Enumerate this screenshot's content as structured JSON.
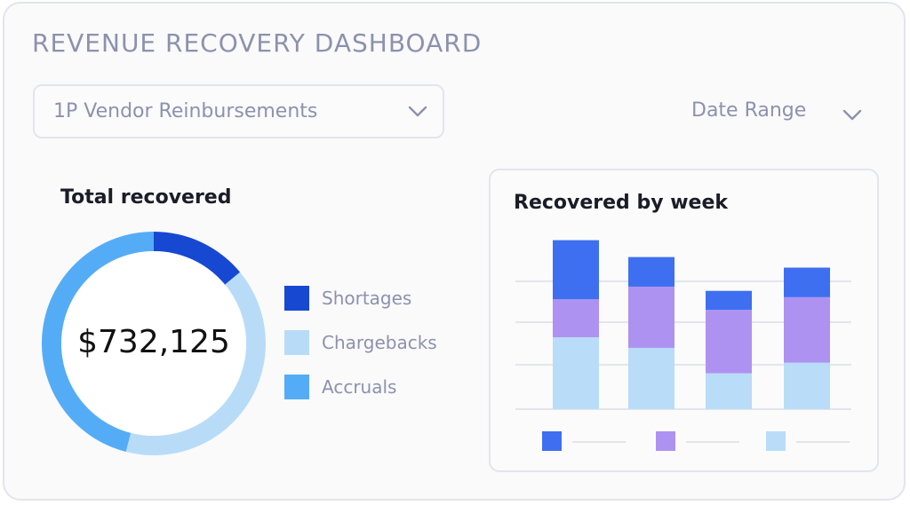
{
  "dashboard": {
    "title": "REVENUE RECOVERY DASHBOARD",
    "vendor_select": {
      "selected": "1P Vendor Reinbursements",
      "icon": "chevron-down-icon"
    },
    "date_range": {
      "label": "Date Range",
      "icon": "chevron-down-icon"
    }
  },
  "total_recovered": {
    "title": "Total recovered",
    "value": "$732,125",
    "legend": [
      {
        "label": "Shortages",
        "color": "#1648d2"
      },
      {
        "label": "Chargebacks",
        "color": "#b8dcf8"
      },
      {
        "label": "Accruals",
        "color": "#55acf6"
      }
    ]
  },
  "colors": {
    "shortages": "#1648d2",
    "chargebacks": "#b8dcf8",
    "accruals": "#55acf6",
    "bar_blue": "#3e6ff0",
    "bar_purple": "#ae92f2",
    "bar_light": "#b9ddf8",
    "grid": "#e3e5ec"
  },
  "chart_data": [
    {
      "type": "pie",
      "title": "Total recovered",
      "categories": [
        "Shortages",
        "Chargebacks",
        "Accruals"
      ],
      "values": [
        14,
        40,
        46
      ],
      "annotation": "$732,125"
    },
    {
      "type": "bar",
      "stacked": true,
      "title": "Recovered by week",
      "categories": [
        "",
        "",
        "",
        ""
      ],
      "series": [
        {
          "values": [
            34,
            29,
            17,
            22
          ]
        },
        {
          "values": [
            18,
            29,
            30,
            31
          ]
        },
        {
          "values": [
            28,
            14,
            9,
            14
          ]
        }
      ],
      "grid": true,
      "legend": "bottom"
    }
  ]
}
